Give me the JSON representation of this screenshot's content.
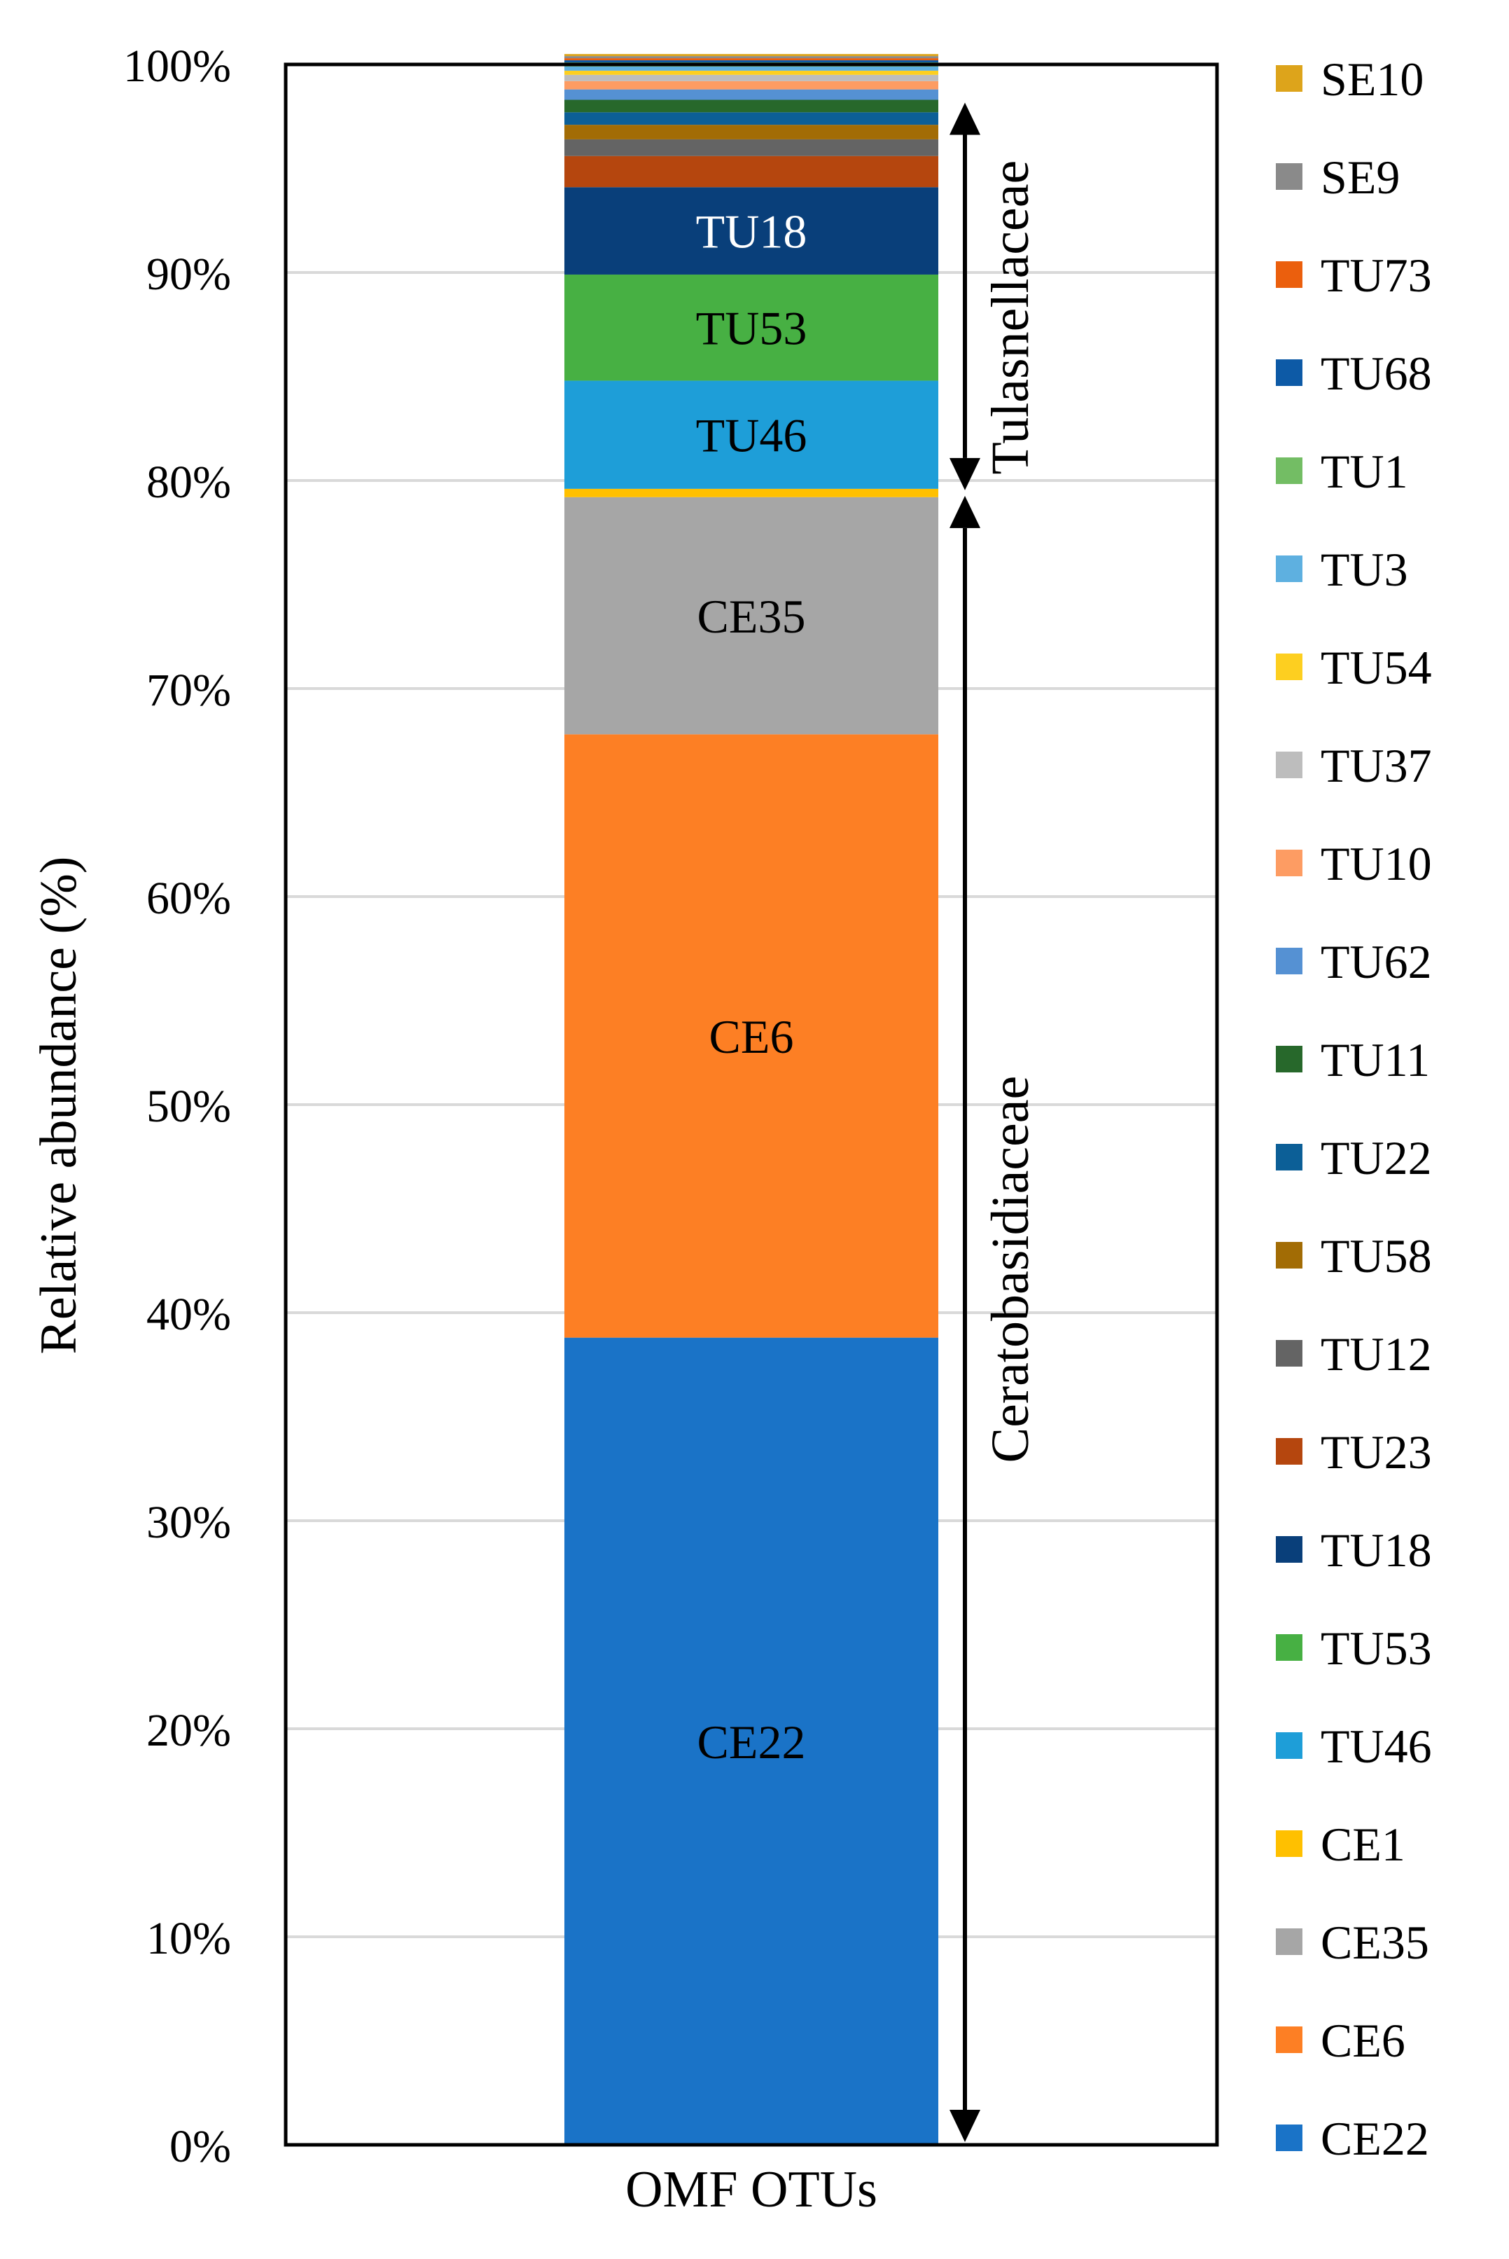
{
  "chart_data": {
    "type": "bar",
    "stacked": true,
    "orientation": "vertical",
    "categories": [
      "OMF OTUs"
    ],
    "xlabel": "OMF OTUs",
    "ylabel": "Relative abundance  (%)",
    "ylim": [
      0,
      100
    ],
    "y_ticks": [
      "0%",
      "10%",
      "20%",
      "30%",
      "40%",
      "50%",
      "60%",
      "70%",
      "80%",
      "90%",
      "100%"
    ],
    "grid": true,
    "legend_position": "right",
    "series": [
      {
        "name": "CE22",
        "values": [
          38.8
        ],
        "color": "#1A73C7",
        "label": "CE22",
        "label_color": "#000000"
      },
      {
        "name": "CE6",
        "values": [
          29.0
        ],
        "color": "#FD7F24",
        "label": "CE6",
        "label_color": "#000000"
      },
      {
        "name": "CE35",
        "values": [
          11.4
        ],
        "color": "#A6A6A6",
        "label": "CE35",
        "label_color": "#000000"
      },
      {
        "name": "CE1",
        "values": [
          0.4
        ],
        "color": "#FFC000",
        "label": "",
        "label_color": "#000000"
      },
      {
        "name": "TU46",
        "values": [
          5.2
        ],
        "color": "#1E9ED8",
        "label": "TU46",
        "label_color": "#000000"
      },
      {
        "name": "TU53",
        "values": [
          5.1
        ],
        "color": "#47B043",
        "label": "TU53",
        "label_color": "#000000"
      },
      {
        "name": "TU18",
        "values": [
          4.2
        ],
        "color": "#093F7A",
        "label": "TU18",
        "label_color": "#ffffff"
      },
      {
        "name": "TU23",
        "values": [
          1.5
        ],
        "color": "#B5460E",
        "label": "",
        "label_color": "#000000"
      },
      {
        "name": "TU12",
        "values": [
          0.8
        ],
        "color": "#646464",
        "label": "",
        "label_color": "#000000"
      },
      {
        "name": "TU58",
        "values": [
          0.7
        ],
        "color": "#A26C05",
        "label": "",
        "label_color": "#000000"
      },
      {
        "name": "TU22",
        "values": [
          0.6
        ],
        "color": "#0C5F97",
        "label": "",
        "label_color": "#000000"
      },
      {
        "name": "TU11",
        "values": [
          0.6
        ],
        "color": "#27682B",
        "label": "",
        "label_color": "#000000"
      },
      {
        "name": "TU62",
        "values": [
          0.5
        ],
        "color": "#5591D3",
        "label": "",
        "label_color": "#000000"
      },
      {
        "name": "TU10",
        "values": [
          0.4
        ],
        "color": "#FD9C63",
        "label": "",
        "label_color": "#000000"
      },
      {
        "name": "TU37",
        "values": [
          0.3
        ],
        "color": "#BDBDBD",
        "label": "",
        "label_color": "#000000"
      },
      {
        "name": "TU54",
        "values": [
          0.2
        ],
        "color": "#FDCF20",
        "label": "",
        "label_color": "#000000"
      },
      {
        "name": "TU3",
        "values": [
          0.2
        ],
        "color": "#5EB0E0",
        "label": "",
        "label_color": "#000000"
      },
      {
        "name": "TU1",
        "values": [
          0.2
        ],
        "color": "#73BD64",
        "label": "",
        "label_color": "#000000"
      },
      {
        "name": "TU68",
        "values": [
          0.1
        ],
        "color": "#0D5AA6",
        "label": "",
        "label_color": "#000000"
      },
      {
        "name": "TU73",
        "values": [
          0.1
        ],
        "color": "#EB5F0D",
        "label": "",
        "label_color": "#000000"
      },
      {
        "name": "SE9",
        "values": [
          0.1
        ],
        "color": "#8A8A8A",
        "label": "",
        "label_color": "#000000"
      },
      {
        "name": "SE10",
        "values": [
          0.1
        ],
        "color": "#DDA41B",
        "label": "",
        "label_color": "#000000"
      }
    ],
    "legend_order": [
      "SE10",
      "SE9",
      "TU73",
      "TU68",
      "TU1",
      "TU3",
      "TU54",
      "TU37",
      "TU10",
      "TU62",
      "TU11",
      "TU22",
      "TU58",
      "TU12",
      "TU23",
      "TU18",
      "TU53",
      "TU46",
      "CE1",
      "CE35",
      "CE6",
      "CE22"
    ],
    "annotations": [
      {
        "text": "Tulasnellaceae",
        "y_range": [
          79.4,
          98.3
        ]
      },
      {
        "text": "Ceratobasidiaceae",
        "y_range": [
          0,
          79.4
        ]
      }
    ]
  }
}
